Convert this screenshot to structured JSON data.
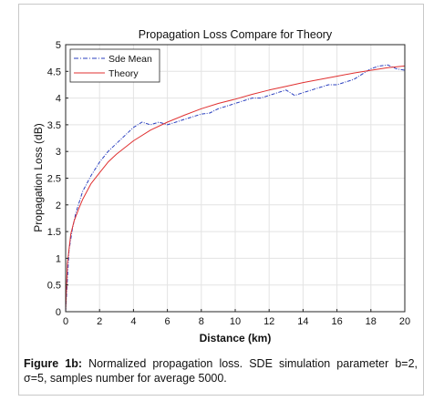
{
  "chart_data": {
    "type": "line",
    "title": "Propagation Loss Compare for Theory",
    "xlabel": "Distance (km)",
    "ylabel": "Propagation Loss (dB)",
    "xlim": [
      0,
      20
    ],
    "ylim": [
      0,
      5
    ],
    "xticks": [
      0,
      2,
      4,
      6,
      8,
      10,
      12,
      14,
      16,
      18,
      20
    ],
    "yticks": [
      0,
      0.5,
      1,
      1.5,
      2,
      2.5,
      3,
      3.5,
      4,
      4.5,
      5
    ],
    "grid": true,
    "legend_position": "top-left",
    "series": [
      {
        "name": "Sde Mean",
        "color": "#2a3fbf",
        "style": "dash-dot",
        "x": [
          0,
          0.2,
          0.4,
          0.6,
          0.8,
          1.0,
          1.5,
          2.0,
          2.5,
          3.0,
          3.5,
          4.0,
          4.5,
          5.0,
          5.5,
          6.0,
          6.5,
          7.0,
          7.5,
          8.0,
          8.5,
          9.0,
          9.5,
          10.0,
          10.5,
          11.0,
          11.5,
          12.0,
          12.5,
          13.0,
          13.5,
          14.0,
          14.5,
          15.0,
          15.5,
          16.0,
          16.5,
          17.0,
          17.5,
          18.0,
          18.5,
          19.0,
          19.5,
          20.0
        ],
        "y": [
          0,
          1.15,
          1.55,
          1.85,
          2.05,
          2.25,
          2.55,
          2.8,
          3.0,
          3.15,
          3.3,
          3.45,
          3.55,
          3.5,
          3.55,
          3.5,
          3.55,
          3.6,
          3.65,
          3.7,
          3.72,
          3.8,
          3.85,
          3.9,
          3.95,
          4.0,
          4.0,
          4.05,
          4.1,
          4.15,
          4.05,
          4.1,
          4.15,
          4.2,
          4.25,
          4.25,
          4.3,
          4.35,
          4.45,
          4.55,
          4.6,
          4.62,
          4.55,
          4.52
        ]
      },
      {
        "name": "Theory",
        "color": "#e03030",
        "style": "solid",
        "x": [
          0,
          0.1,
          0.3,
          0.5,
          0.8,
          1.0,
          1.5,
          2.0,
          2.5,
          3.0,
          4.0,
          5.0,
          6.0,
          7.0,
          8.0,
          9.0,
          10.0,
          11.0,
          12.0,
          13.0,
          14.0,
          15.0,
          16.0,
          17.0,
          18.0,
          19.0,
          20.0
        ],
        "y": [
          0,
          0.9,
          1.45,
          1.7,
          1.95,
          2.1,
          2.4,
          2.6,
          2.8,
          2.95,
          3.2,
          3.4,
          3.55,
          3.68,
          3.8,
          3.9,
          3.98,
          4.07,
          4.15,
          4.22,
          4.29,
          4.35,
          4.41,
          4.47,
          4.52,
          4.57,
          4.6
        ]
      }
    ]
  },
  "caption": {
    "label": "Figure 1b:",
    "text": "Normalized propagation loss. SDE simulation parameter b=2, σ=5, samples number for average 5000."
  }
}
